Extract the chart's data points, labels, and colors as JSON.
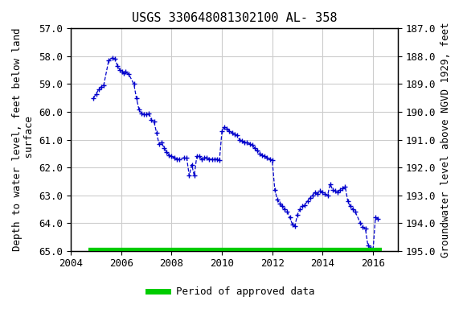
{
  "title": "USGS 330648081302100 AL- 358",
  "ylabel_left": "Depth to water level, feet below land\n surface",
  "ylabel_right": "Groundwater level above NGVD 1929, feet",
  "ylim_left": [
    57.0,
    65.0
  ],
  "ylim_right": [
    187.0,
    195.0
  ],
  "xlim": [
    2004.0,
    2017.0
  ],
  "yticks_left": [
    57.0,
    58.0,
    59.0,
    60.0,
    61.0,
    62.0,
    63.0,
    64.0,
    65.0
  ],
  "yticks_right": [
    187.0,
    188.0,
    189.0,
    190.0,
    191.0,
    192.0,
    193.0,
    194.0,
    195.0
  ],
  "xticks": [
    2004,
    2006,
    2008,
    2010,
    2012,
    2014,
    2016
  ],
  "line_color": "#0000cc",
  "line_style": "--",
  "marker": "+",
  "marker_size": 4,
  "green_bar_color": "#00cc00",
  "green_bar_y": 65.0,
  "green_bar_xstart": 2004.7,
  "green_bar_xend": 2016.35,
  "legend_label": "Period of approved data",
  "background_color": "#ffffff",
  "grid_color": "#cccccc",
  "title_fontsize": 11,
  "axis_fontsize": 9,
  "tick_fontsize": 9,
  "data_x": [
    2004.9,
    2005.0,
    2005.1,
    2005.2,
    2005.3,
    2005.5,
    2005.65,
    2005.75,
    2005.85,
    2005.95,
    2006.05,
    2006.1,
    2006.15,
    2006.3,
    2006.5,
    2006.6,
    2006.7,
    2006.8,
    2006.9,
    2007.0,
    2007.1,
    2007.2,
    2007.3,
    2007.4,
    2007.5,
    2007.6,
    2007.7,
    2007.8,
    2007.9,
    2008.0,
    2008.1,
    2008.2,
    2008.3,
    2008.5,
    2008.6,
    2008.7,
    2008.8,
    2008.9,
    2009.0,
    2009.1,
    2009.2,
    2009.3,
    2009.4,
    2009.5,
    2009.6,
    2009.7,
    2009.8,
    2009.9,
    2010.0,
    2010.1,
    2010.2,
    2010.3,
    2010.4,
    2010.5,
    2010.6,
    2010.7,
    2010.8,
    2010.9,
    2011.0,
    2011.1,
    2011.2,
    2011.3,
    2011.4,
    2011.5,
    2011.6,
    2011.7,
    2011.8,
    2011.9,
    2012.0,
    2012.1,
    2012.2,
    2012.3,
    2012.4,
    2012.5,
    2012.6,
    2012.7,
    2012.8,
    2012.9,
    2013.0,
    2013.1,
    2013.2,
    2013.3,
    2013.4,
    2013.5,
    2013.6,
    2013.7,
    2013.8,
    2013.9,
    2014.0,
    2014.1,
    2014.2,
    2014.3,
    2014.4,
    2014.5,
    2014.6,
    2014.7,
    2014.8,
    2014.9,
    2015.0,
    2015.1,
    2015.2,
    2015.3,
    2015.5,
    2015.6,
    2015.7,
    2015.8,
    2015.9,
    2016.0,
    2016.1,
    2016.2
  ],
  "data_y": [
    59.5,
    59.35,
    59.2,
    59.1,
    59.05,
    58.15,
    58.05,
    58.1,
    58.35,
    58.5,
    58.55,
    58.6,
    58.55,
    58.65,
    59.0,
    59.5,
    59.9,
    60.05,
    60.1,
    60.1,
    60.05,
    60.3,
    60.35,
    60.75,
    61.15,
    61.1,
    61.3,
    61.45,
    61.55,
    61.6,
    61.65,
    61.7,
    61.7,
    61.65,
    61.65,
    62.3,
    61.9,
    62.3,
    61.6,
    61.6,
    61.7,
    61.65,
    61.65,
    61.7,
    61.7,
    61.7,
    61.7,
    61.75,
    60.7,
    60.55,
    60.6,
    60.7,
    60.75,
    60.8,
    60.85,
    61.0,
    61.05,
    61.1,
    61.1,
    61.15,
    61.2,
    61.3,
    61.4,
    61.5,
    61.55,
    61.6,
    61.65,
    61.7,
    61.75,
    62.8,
    63.15,
    63.3,
    63.4,
    63.5,
    63.6,
    63.8,
    64.05,
    64.1,
    63.7,
    63.5,
    63.4,
    63.35,
    63.2,
    63.1,
    63.0,
    62.9,
    62.95,
    62.85,
    62.9,
    62.95,
    63.0,
    62.6,
    62.8,
    62.85,
    62.9,
    62.8,
    62.75,
    62.7,
    63.2,
    63.4,
    63.5,
    63.6,
    64.0,
    64.15,
    64.2,
    64.8,
    64.9,
    65.05,
    63.8,
    63.85
  ]
}
